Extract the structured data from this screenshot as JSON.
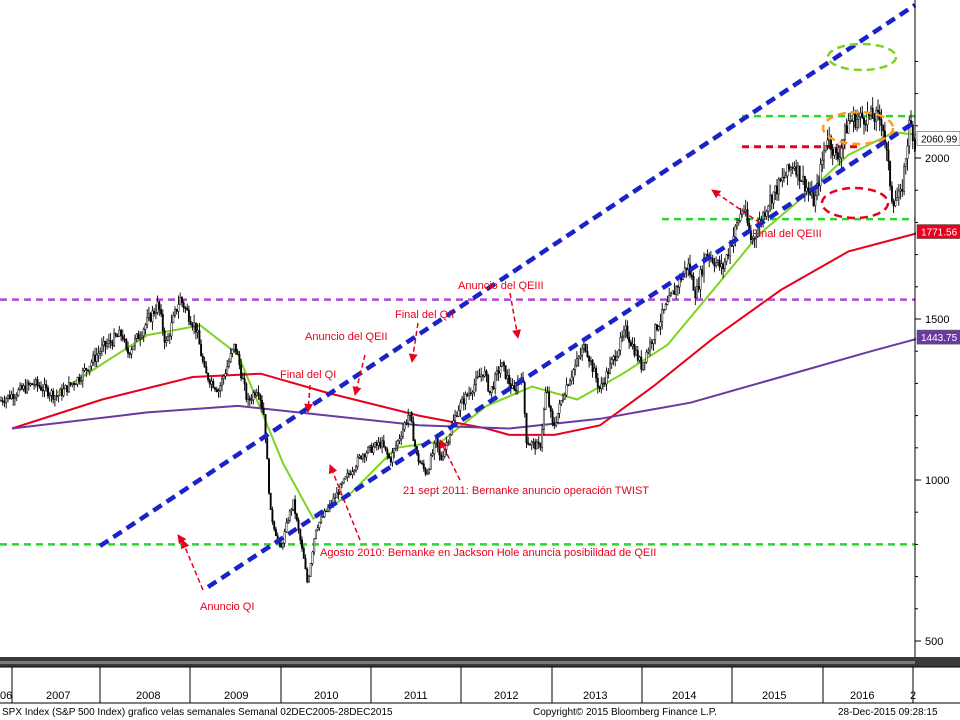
{
  "chart_data": {
    "type": "candlestick",
    "series_name": "SPX Index (S&P 500 Index)",
    "frequency": "weekly",
    "y_ticks": [
      500,
      1000,
      1500,
      2000
    ],
    "y_range": [
      460,
      2400
    ],
    "x_categories": [
      "06",
      "2007",
      "2008",
      "2009",
      "2010",
      "2011",
      "2012",
      "2013",
      "2014",
      "2015",
      "2016",
      "2"
    ],
    "price_path": [
      [
        "2005-12-02",
        1265
      ],
      [
        "2006-03-01",
        1300
      ],
      [
        "2006-06-01",
        1260
      ],
      [
        "2006-09-01",
        1320
      ],
      [
        "2006-12-01",
        1410
      ],
      [
        "2007-02-20",
        1455
      ],
      [
        "2007-03-10",
        1390
      ],
      [
        "2007-07-15",
        1545
      ],
      [
        "2007-08-15",
        1420
      ],
      [
        "2007-10-10",
        1565
      ],
      [
        "2007-12-15",
        1470
      ],
      [
        "2008-01-20",
        1330
      ],
      [
        "2008-03-15",
        1280
      ],
      [
        "2008-05-20",
        1420
      ],
      [
        "2008-07-10",
        1240
      ],
      [
        "2008-08-20",
        1290
      ],
      [
        "2008-09-15",
        1200
      ],
      [
        "2008-10-10",
        900
      ],
      [
        "2008-11-20",
        780
      ],
      [
        "2008-12-20",
        880
      ],
      [
        "2009-01-10",
        930
      ],
      [
        "2009-02-20",
        760
      ],
      [
        "2009-03-09",
        677
      ],
      [
        "2009-04-10",
        850
      ],
      [
        "2009-06-15",
        930
      ],
      [
        "2009-08-15",
        1010
      ],
      [
        "2009-10-15",
        1080
      ],
      [
        "2009-12-31",
        1115
      ],
      [
        "2010-02-05",
        1060
      ],
      [
        "2010-04-23",
        1210
      ],
      [
        "2010-05-25",
        1070
      ],
      [
        "2010-07-02",
        1020
      ],
      [
        "2010-08-10",
        1120
      ],
      [
        "2010-08-27",
        1060
      ],
      [
        "2010-11-05",
        1220
      ],
      [
        "2011-02-18",
        1340
      ],
      [
        "2011-03-15",
        1270
      ],
      [
        "2011-04-29",
        1360
      ],
      [
        "2011-06-20",
        1270
      ],
      [
        "2011-07-22",
        1340
      ],
      [
        "2011-08-10",
        1120
      ],
      [
        "2011-10-03",
        1100
      ],
      [
        "2011-10-28",
        1285
      ],
      [
        "2011-11-25",
        1160
      ],
      [
        "2012-01-15",
        1290
      ],
      [
        "2012-04-02",
        1420
      ],
      [
        "2012-06-01",
        1280
      ],
      [
        "2012-09-14",
        1465
      ],
      [
        "2012-11-15",
        1355
      ],
      [
        "2013-01-15",
        1475
      ],
      [
        "2013-05-21",
        1670
      ],
      [
        "2013-06-24",
        1575
      ],
      [
        "2013-08-02",
        1710
      ],
      [
        "2013-10-08",
        1655
      ],
      [
        "2013-12-31",
        1850
      ],
      [
        "2014-02-03",
        1740
      ],
      [
        "2014-04-15",
        1870
      ],
      [
        "2014-07-24",
        1985
      ],
      [
        "2014-10-15",
        1860
      ],
      [
        "2014-12-05",
        2075
      ],
      [
        "2015-01-15",
        1995
      ],
      [
        "2015-03-01",
        2115
      ],
      [
        "2015-05-20",
        2130
      ],
      [
        "2015-07-15",
        2120
      ],
      [
        "2015-08-25",
        1870
      ],
      [
        "2015-09-29",
        1880
      ],
      [
        "2015-11-03",
        2110
      ],
      [
        "2015-12-14",
        2010
      ],
      [
        "2015-12-28",
        2060.99
      ]
    ],
    "moving_averages": [
      {
        "color": "#7ed321",
        "points": [
          [
            "2006-06-01",
            1270
          ],
          [
            "2007-06-01",
            1450
          ],
          [
            "2008-01-01",
            1480
          ],
          [
            "2008-06-01",
            1390
          ],
          [
            "2008-12-01",
            1050
          ],
          [
            "2009-04-01",
            880
          ],
          [
            "2009-09-01",
            960
          ],
          [
            "2010-03-01",
            1100
          ],
          [
            "2010-09-01",
            1120
          ],
          [
            "2011-03-01",
            1230
          ],
          [
            "2011-09-01",
            1290
          ],
          [
            "2012-03-01",
            1250
          ],
          [
            "2012-09-01",
            1330
          ],
          [
            "2013-03-01",
            1420
          ],
          [
            "2013-09-01",
            1590
          ],
          [
            "2014-03-01",
            1760
          ],
          [
            "2014-09-01",
            1880
          ],
          [
            "2015-03-01",
            2010
          ],
          [
            "2015-09-01",
            2080
          ],
          [
            "2015-12-28",
            2070
          ]
        ]
      },
      {
        "color": "#e8001c",
        "points": [
          [
            "2005-12-02",
            1160
          ],
          [
            "2006-12-01",
            1250
          ],
          [
            "2007-12-01",
            1320
          ],
          [
            "2008-09-01",
            1330
          ],
          [
            "2009-06-01",
            1270
          ],
          [
            "2010-06-01",
            1200
          ],
          [
            "2011-03-01",
            1160
          ],
          [
            "2011-06-01",
            1140
          ],
          [
            "2011-12-01",
            1140
          ],
          [
            "2012-06-01",
            1170
          ],
          [
            "2013-01-01",
            1290
          ],
          [
            "2013-09-01",
            1440
          ],
          [
            "2014-06-01",
            1590
          ],
          [
            "2015-03-01",
            1710
          ],
          [
            "2015-12-28",
            1771.56
          ]
        ]
      },
      {
        "color": "#6a3aa2",
        "points": [
          [
            "2005-12-02",
            1160
          ],
          [
            "2007-06-01",
            1210
          ],
          [
            "2008-06-01",
            1230
          ],
          [
            "2009-06-01",
            1200
          ],
          [
            "2010-06-01",
            1170
          ],
          [
            "2011-06-01",
            1160
          ],
          [
            "2012-06-01",
            1190
          ],
          [
            "2013-06-01",
            1240
          ],
          [
            "2014-06-01",
            1320
          ],
          [
            "2015-06-01",
            1400
          ],
          [
            "2015-12-28",
            1443.75
          ]
        ]
      }
    ],
    "channel_lines": [
      {
        "color": "#1a23c8",
        "points": [
          [
            "2008-05-01",
            800
          ],
          [
            "2016-11-01",
            2350
          ]
        ]
      },
      {
        "color": "#1a23c8",
        "points": [
          [
            "2009-03-01",
            680
          ],
          [
            "2016-11-01",
            2130
          ]
        ]
      }
    ],
    "horizontal_lines": [
      {
        "color": "#2ad82a",
        "value": 800
      },
      {
        "color": "#b04ad0",
        "value": 1560
      },
      {
        "color": "#2ad82a",
        "value": 2130
      },
      {
        "color": "#2ad82a",
        "value": 1810
      },
      {
        "color": "#e8001c",
        "value": 2035
      }
    ],
    "price_labels": [
      {
        "value": 2060.99,
        "text": "2060.99",
        "bg": "#ffffff",
        "color": "#000000"
      },
      {
        "value": 1771.56,
        "text": "1771.56",
        "bg": "#e8001c",
        "color": "#ffffff"
      },
      {
        "value": 1443.75,
        "text": "1443.75",
        "bg": "#6a3aa2",
        "color": "#ffffff"
      }
    ],
    "annotations": [
      {
        "text": "Anuncio QI"
      },
      {
        "text": "Final del QI"
      },
      {
        "text": "Anuncio del QEII"
      },
      {
        "text": "Final del QII"
      },
      {
        "text": "Anuncio del QEIII"
      },
      {
        "text": "Final del QEIII"
      },
      {
        "text": "21 sept 2011: Bernanke anuncio operación TWIST"
      },
      {
        "text": "Agosto 2010: Bernanke en Jackson Hole anuncia posibilidad de QEII"
      }
    ],
    "ellipse_colors": [
      "#7ed321",
      "#ff9a1a",
      "#e8001c"
    ],
    "footer": {
      "left": "SPX Index (S&P 500 Index) grafico velas semanales  Semanal 02DEC2005-28DEC2015",
      "center": "Copyright© 2015 Bloomberg Finance L.P.",
      "right": "28-Dec-2015 09:28:15"
    }
  }
}
